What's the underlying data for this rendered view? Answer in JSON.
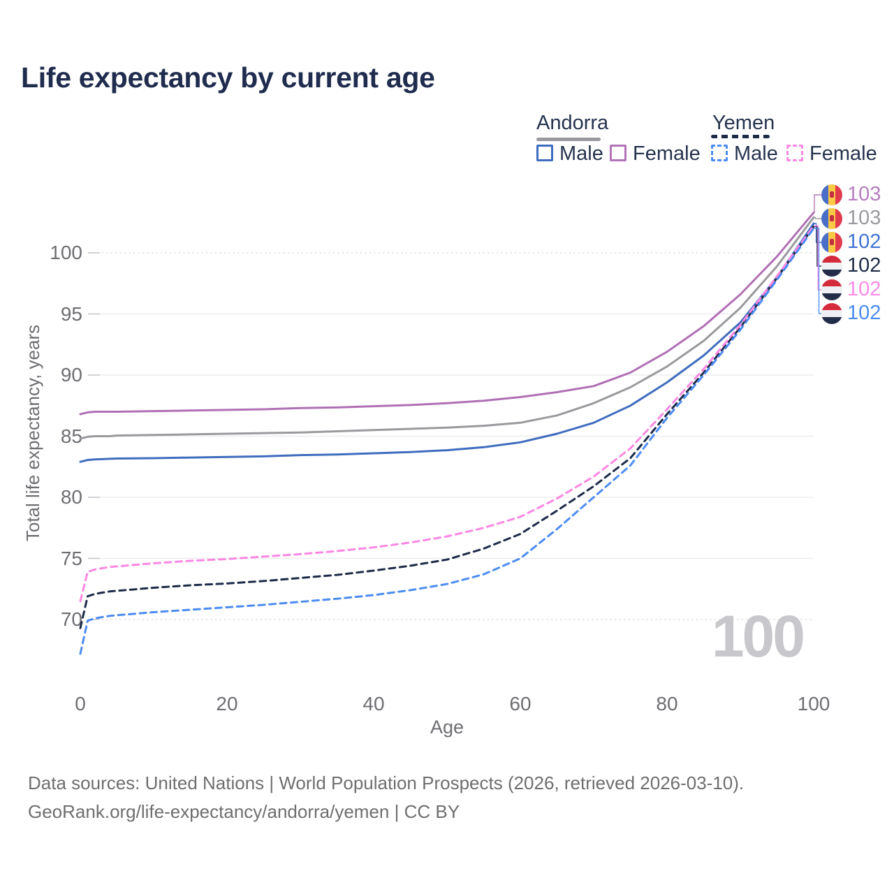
{
  "title": "Life expectancy by current age",
  "legend": {
    "groups": [
      {
        "label": "Andorra",
        "line_style": "solid",
        "underline_color": "#9a9a9e",
        "items": [
          {
            "label": "Male",
            "color": "#3f6cbe"
          },
          {
            "label": "Female",
            "color": "#b273b8"
          }
        ]
      },
      {
        "label": "Yemen",
        "line_style": "dashed",
        "underline_color": "#1d2b49",
        "items": [
          {
            "label": "Male",
            "color": "#4c8cf2"
          },
          {
            "label": "Female",
            "color": "#fb87e3"
          }
        ]
      }
    ]
  },
  "axes": {
    "x_label": "Age",
    "y_label": "Total life expectancy, years",
    "x_ticks": [
      0,
      20,
      40,
      60,
      80,
      100
    ],
    "y_ticks": [
      70,
      75,
      80,
      85,
      90,
      95,
      100
    ]
  },
  "watermark": "100",
  "footer": {
    "line1": "Data sources: United Nations | World Population Prospects (2026, retrieved 2026-03-10).",
    "line2": "GeoRank.org/life-expectancy/andorra/yemen | CC BY"
  },
  "chart_data": {
    "type": "line",
    "title": "Life expectancy by current age",
    "xlabel": "Age",
    "ylabel": "Total life expectancy, years",
    "xlim": [
      0,
      100
    ],
    "ylim": [
      67,
      104
    ],
    "grid": "horizontal",
    "legend_position": "top-right",
    "dotted_gridlines": [
      70,
      100
    ],
    "x": [
      0,
      1,
      2,
      3,
      4,
      5,
      10,
      15,
      20,
      25,
      30,
      35,
      40,
      45,
      50,
      55,
      60,
      65,
      70,
      75,
      80,
      85,
      90,
      95,
      100
    ],
    "series": [
      {
        "id": "andorra-female",
        "name": "Andorra Female",
        "country": "Andorra",
        "flag": "andorra",
        "dashed": false,
        "color": "#b06fb4",
        "label_color": "#b57fbd",
        "end_label": "103",
        "values": [
          86.8,
          86.95,
          87.0,
          87.0,
          87.0,
          87.0,
          87.05,
          87.1,
          87.15,
          87.2,
          87.3,
          87.35,
          87.45,
          87.55,
          87.7,
          87.9,
          88.2,
          88.6,
          89.1,
          90.2,
          91.9,
          94.0,
          96.6,
          99.7,
          103.3
        ]
      },
      {
        "id": "andorra-all",
        "name": "Andorra (both sexes)",
        "country": "Andorra",
        "flag": "andorra",
        "dashed": false,
        "color": "#9a9a9e",
        "label_color": "#9a9aa0",
        "end_label": "103",
        "values": [
          84.8,
          84.95,
          85.0,
          85.0,
          85.0,
          85.05,
          85.1,
          85.15,
          85.2,
          85.25,
          85.3,
          85.4,
          85.5,
          85.6,
          85.7,
          85.85,
          86.1,
          86.7,
          87.7,
          89.0,
          90.7,
          92.8,
          95.5,
          98.9,
          102.9
        ]
      },
      {
        "id": "andorra-male",
        "name": "Andorra Male",
        "country": "Andorra",
        "flag": "andorra",
        "dashed": false,
        "color": "#3f6cbe",
        "label_color": "#4274d2",
        "end_label": "102",
        "values": [
          82.9,
          83.05,
          83.1,
          83.12,
          83.15,
          83.17,
          83.2,
          83.25,
          83.3,
          83.35,
          83.45,
          83.5,
          83.6,
          83.7,
          83.85,
          84.1,
          84.5,
          85.2,
          86.1,
          87.5,
          89.4,
          91.6,
          94.3,
          98.0,
          102.4
        ]
      },
      {
        "id": "yemen-all",
        "name": "Yemen (both sexes)",
        "country": "Yemen",
        "flag": "yemen",
        "dashed": true,
        "color": "#1d2b49",
        "label_color": "#1e2b47",
        "end_label": "102",
        "values": [
          69.3,
          71.9,
          72.1,
          72.2,
          72.3,
          72.35,
          72.6,
          72.8,
          72.95,
          73.15,
          73.4,
          73.65,
          74.0,
          74.4,
          74.9,
          75.8,
          77.0,
          78.9,
          80.9,
          83.2,
          86.8,
          90.2,
          93.9,
          97.95,
          102.15
        ]
      },
      {
        "id": "yemen-female",
        "name": "Yemen Female",
        "country": "Yemen",
        "flag": "yemen",
        "dashed": true,
        "color": "#fb87e3",
        "label_color": "#fc8ce8",
        "end_label": "102",
        "values": [
          71.5,
          73.9,
          74.1,
          74.2,
          74.3,
          74.35,
          74.6,
          74.8,
          74.95,
          75.15,
          75.35,
          75.6,
          75.9,
          76.3,
          76.8,
          77.5,
          78.4,
          79.9,
          81.7,
          84.0,
          87.2,
          90.5,
          94.1,
          98.1,
          102.2
        ]
      },
      {
        "id": "yemen-male",
        "name": "Yemen Male",
        "country": "Yemen",
        "flag": "yemen",
        "dashed": true,
        "color": "#4c8cf2",
        "label_color": "#4b8cf0",
        "end_label": "102",
        "values": [
          67.2,
          69.9,
          70.1,
          70.2,
          70.3,
          70.35,
          70.6,
          70.8,
          71.0,
          71.2,
          71.45,
          71.7,
          72.0,
          72.4,
          72.9,
          73.7,
          75.0,
          77.4,
          80.0,
          82.6,
          86.5,
          90.0,
          93.7,
          97.8,
          102.0
        ]
      }
    ]
  }
}
